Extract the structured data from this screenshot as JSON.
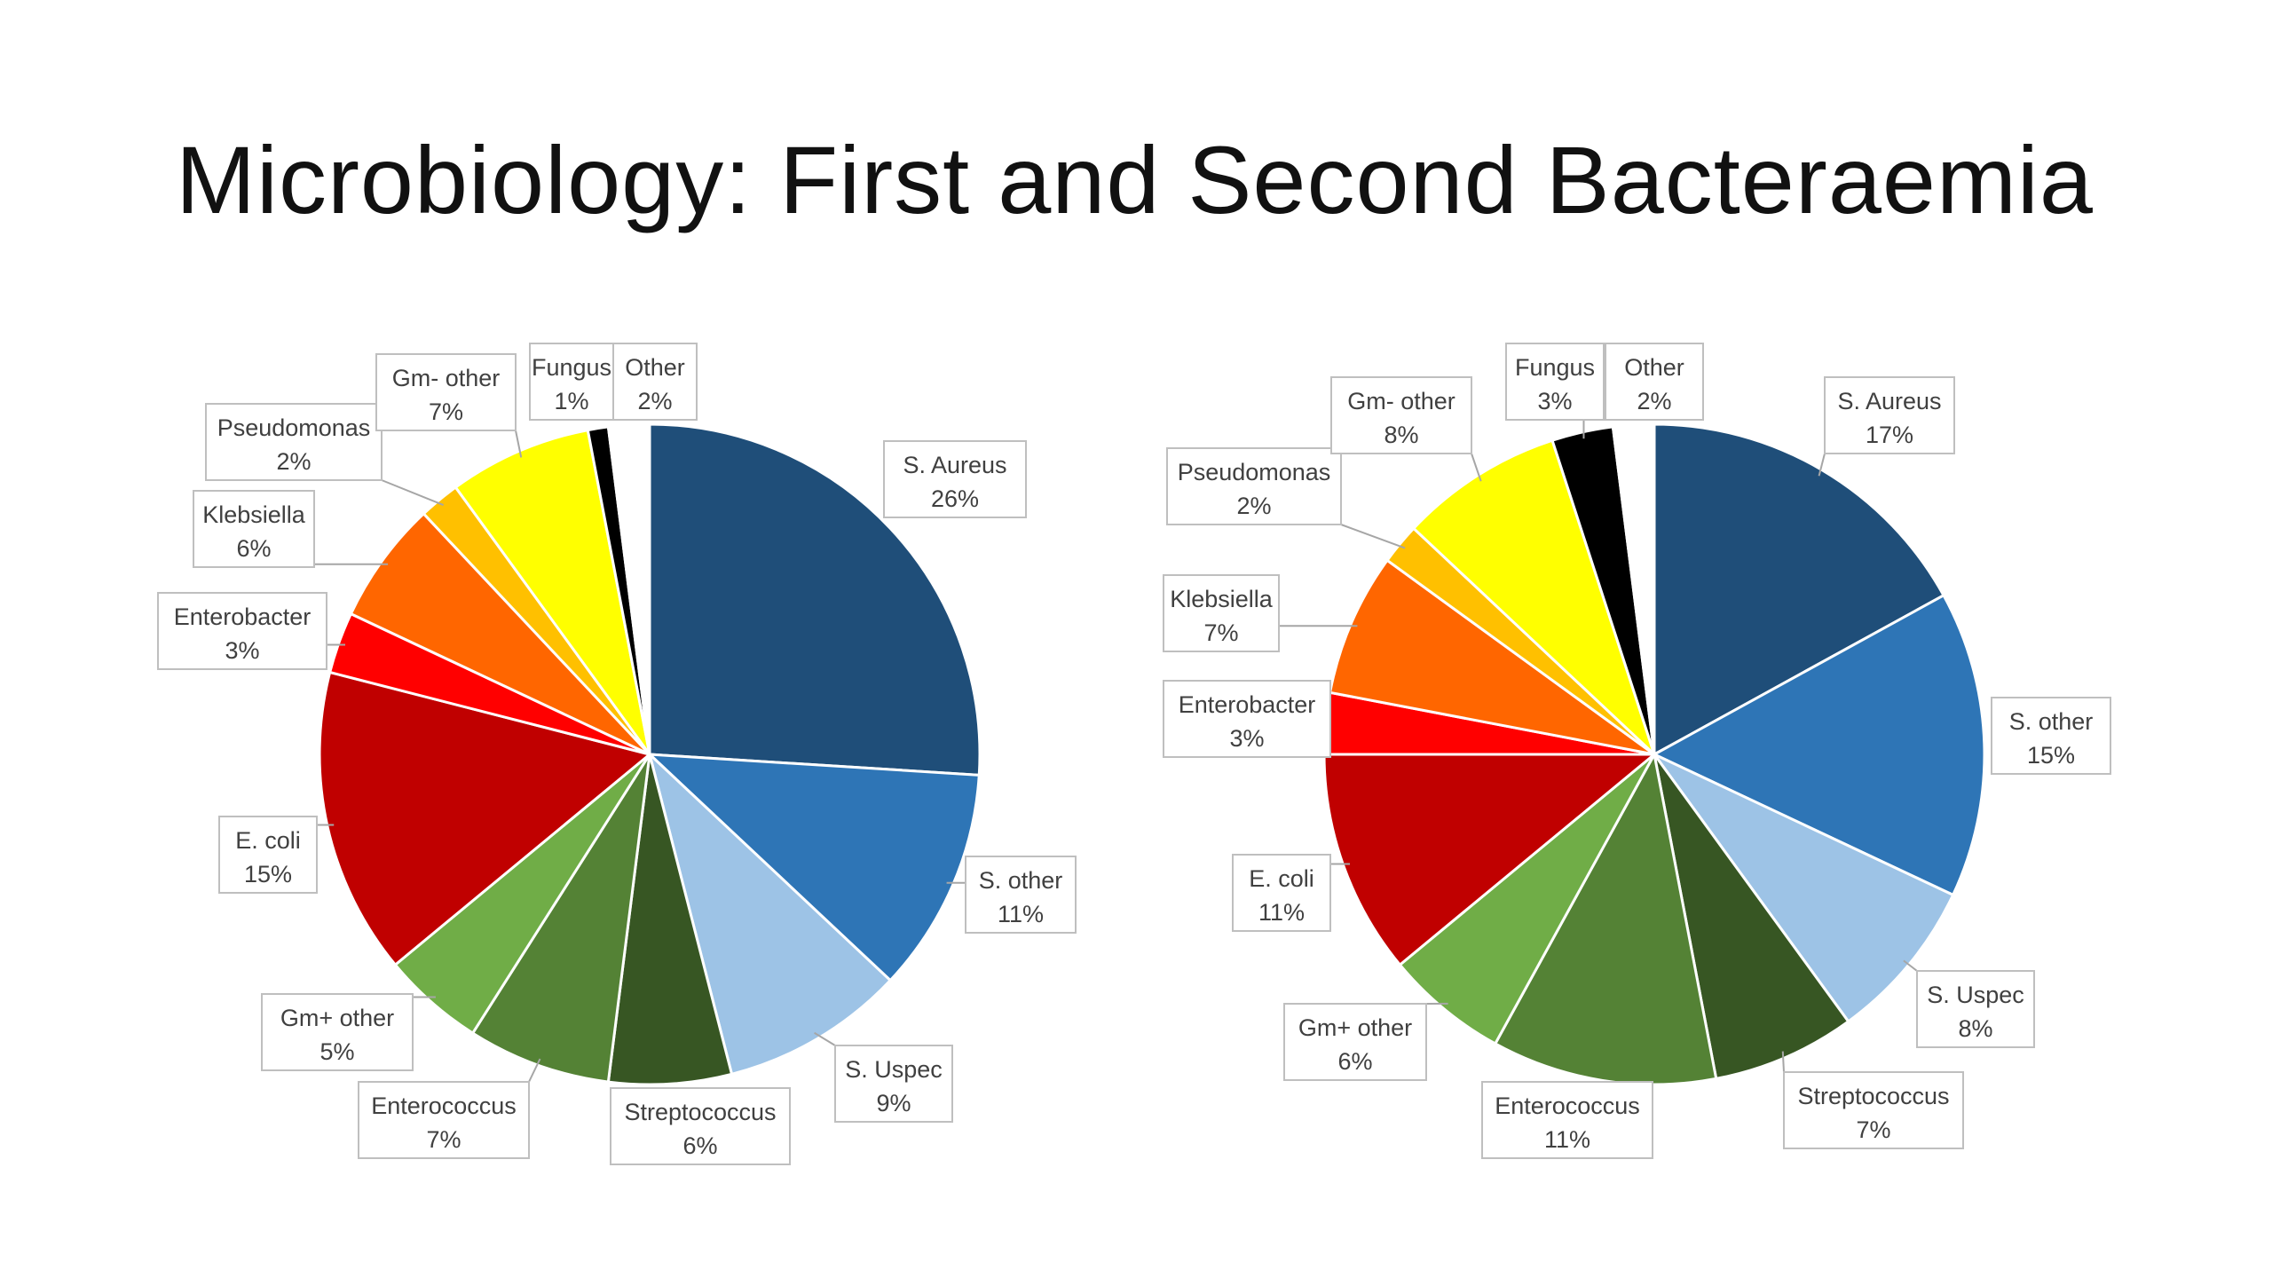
{
  "title": "Microbiology: First and Second Bacteraemia",
  "chart_data": [
    {
      "type": "pie",
      "categories": [
        "S. Aureus",
        "S. other",
        "S. Uspec",
        "Streptococcus",
        "Enterococcus",
        "Gm+ other",
        "E. coli",
        "Enterobacter",
        "Klebsiella",
        "Pseudomonas",
        "Gm- other",
        "Fungus",
        "Other"
      ],
      "values": [
        26,
        11,
        9,
        6,
        7,
        5,
        15,
        3,
        6,
        2,
        7,
        1,
        2
      ],
      "labels": [
        "26%",
        "11%",
        "9%",
        "6%",
        "7%",
        "5%",
        "15%",
        "3%",
        "6%",
        "2%",
        "7%",
        "1%",
        "2%"
      ],
      "colors": [
        "#1f4e79",
        "#2e75b6",
        "#9dc3e6",
        "#375623",
        "#548235",
        "#70ad47",
        "#c00000",
        "#ff0000",
        "#ff6600",
        "#ffc000",
        "#ffff00",
        "#000000",
        "#ffffff"
      ],
      "start_angle": "12 o'clock",
      "direction": "clockwise",
      "legend": "none (data callouts)"
    },
    {
      "type": "pie",
      "categories": [
        "S. Aureus",
        "S. other",
        "S. Uspec",
        "Streptococcus",
        "Enterococcus",
        "Gm+ other",
        "E. coli",
        "Enterobacter",
        "Klebsiella",
        "Pseudomonas",
        "Gm- other",
        "Fungus",
        "Other"
      ],
      "values": [
        17,
        15,
        8,
        7,
        11,
        6,
        11,
        3,
        7,
        2,
        8,
        3,
        2
      ],
      "labels": [
        "17%",
        "15%",
        "8%",
        "7%",
        "11%",
        "6%",
        "11%",
        "3%",
        "7%",
        "2%",
        "8%",
        "3%",
        "2%"
      ],
      "colors": [
        "#1f4e79",
        "#2e75b6",
        "#9dc3e6",
        "#375623",
        "#548235",
        "#70ad47",
        "#c00000",
        "#ff0000",
        "#ff6600",
        "#ffc000",
        "#ffff00",
        "#000000",
        "#ffffff"
      ],
      "start_angle": "12 o'clock",
      "direction": "clockwise",
      "legend": "none (data callouts)"
    }
  ]
}
